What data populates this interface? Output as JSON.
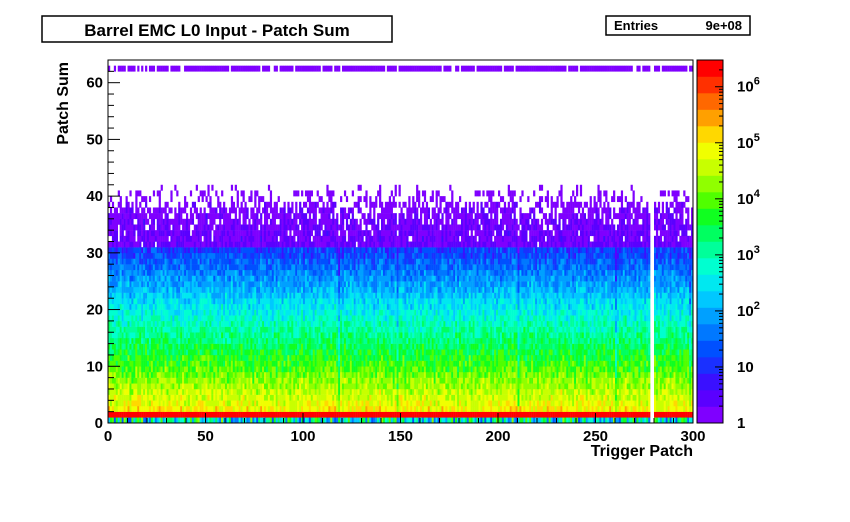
{
  "title_box": {
    "text": "Barrel EMC L0 Input - Patch Sum"
  },
  "stats_box": {
    "label": "Entries",
    "value": "9e+08"
  },
  "chart_data": {
    "type": "heatmap",
    "title": "Barrel EMC L0 Input - Patch Sum",
    "xlabel": "Trigger Patch",
    "ylabel": "Patch Sum",
    "xlim": [
      0,
      300
    ],
    "ylim": [
      0,
      64
    ],
    "x_ticks": [
      0,
      50,
      100,
      150,
      200,
      250,
      300
    ],
    "y_ticks": [
      0,
      10,
      20,
      30,
      40,
      50,
      60
    ],
    "z_scale": "log",
    "zlim": [
      1,
      3000000
    ],
    "z_ticks": [
      {
        "value": 1,
        "label": "1"
      },
      {
        "value": 10,
        "label": "10"
      },
      {
        "value": 100,
        "label": "10",
        "exp": "2"
      },
      {
        "value": 1000,
        "label": "10",
        "exp": "3"
      },
      {
        "value": 10000,
        "label": "10",
        "exp": "4"
      },
      {
        "value": 100000,
        "label": "10",
        "exp": "5"
      },
      {
        "value": 1000000,
        "label": "10",
        "exp": "6"
      }
    ],
    "palette": [
      "#7f00ff",
      "#5a00ff",
      "#3a10ff",
      "#1a30ff",
      "#0050ff",
      "#0078ff",
      "#00a0ff",
      "#00c8ff",
      "#00e8f0",
      "#00ffd0",
      "#00ff9a",
      "#00ff60",
      "#10ff20",
      "#50ff00",
      "#90ff00",
      "#c8ff00",
      "#f0ff00",
      "#ffd800",
      "#ffa000",
      "#ff6800",
      "#ff3000",
      "#ff0000"
    ],
    "bins": {
      "nx": 300,
      "ny": 64
    },
    "profile": {
      "pedestal_y_bin": 1,
      "pedestal_counts": 3000000,
      "overflow_y_bin": 62,
      "low_occupancy_columns": [
        118,
        148,
        210,
        260,
        298
      ],
      "empty_columns": [
        278,
        279
      ]
    },
    "x_extent": 300,
    "grid": false,
    "legend": "right"
  }
}
